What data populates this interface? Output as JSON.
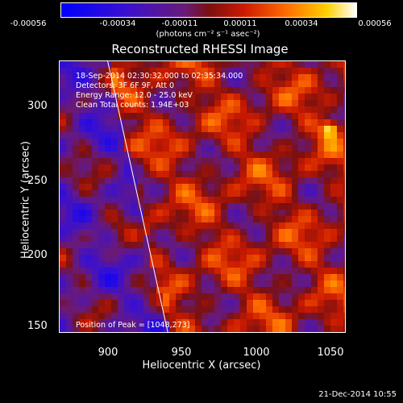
{
  "colorbar": {
    "tick_labels": [
      "-0.00056",
      "-0.00034",
      "-0.00011",
      "0.00011",
      "0.00034",
      "0.00056"
    ],
    "units_label": "(photons cm⁻² s⁻¹ asec⁻²)",
    "range": [
      -0.00056,
      0.00056
    ]
  },
  "chart_data": {
    "type": "heatmap",
    "title": "Reconstructed RHESSI Image",
    "xlabel": "Heliocentric X (arcsec)",
    "ylabel": "Heliocentric Y (arcsec)",
    "xlim": [
      868,
      1058
    ],
    "ylim": [
      138,
      318
    ],
    "xticks": [
      "900",
      "950",
      "1000",
      "1050"
    ],
    "xtick_values": [
      900,
      950,
      1000,
      1050
    ],
    "yticks": [
      "300",
      "250",
      "200",
      "150"
    ],
    "ytick_values": [
      300,
      250,
      200,
      150
    ],
    "annotations": [
      "18-Sep-2014 02:30:32.000 to 02:35:34.000",
      "Detectors: 3F 6F 9F, Att 0",
      "Energy Range: 12.0 - 25.0 keV",
      "Clean     Total counts: 1.94E+03"
    ],
    "peak_label": "Position of Peak = [1048,273]",
    "peak": [
      1048,
      273
    ],
    "limb": [
      [
        940,
        138
      ],
      [
        900,
        318
      ]
    ],
    "colormap": "blue-purple-red-yellow-white"
  },
  "footer": {
    "timestamp": "21-Dec-2014 10:55"
  }
}
